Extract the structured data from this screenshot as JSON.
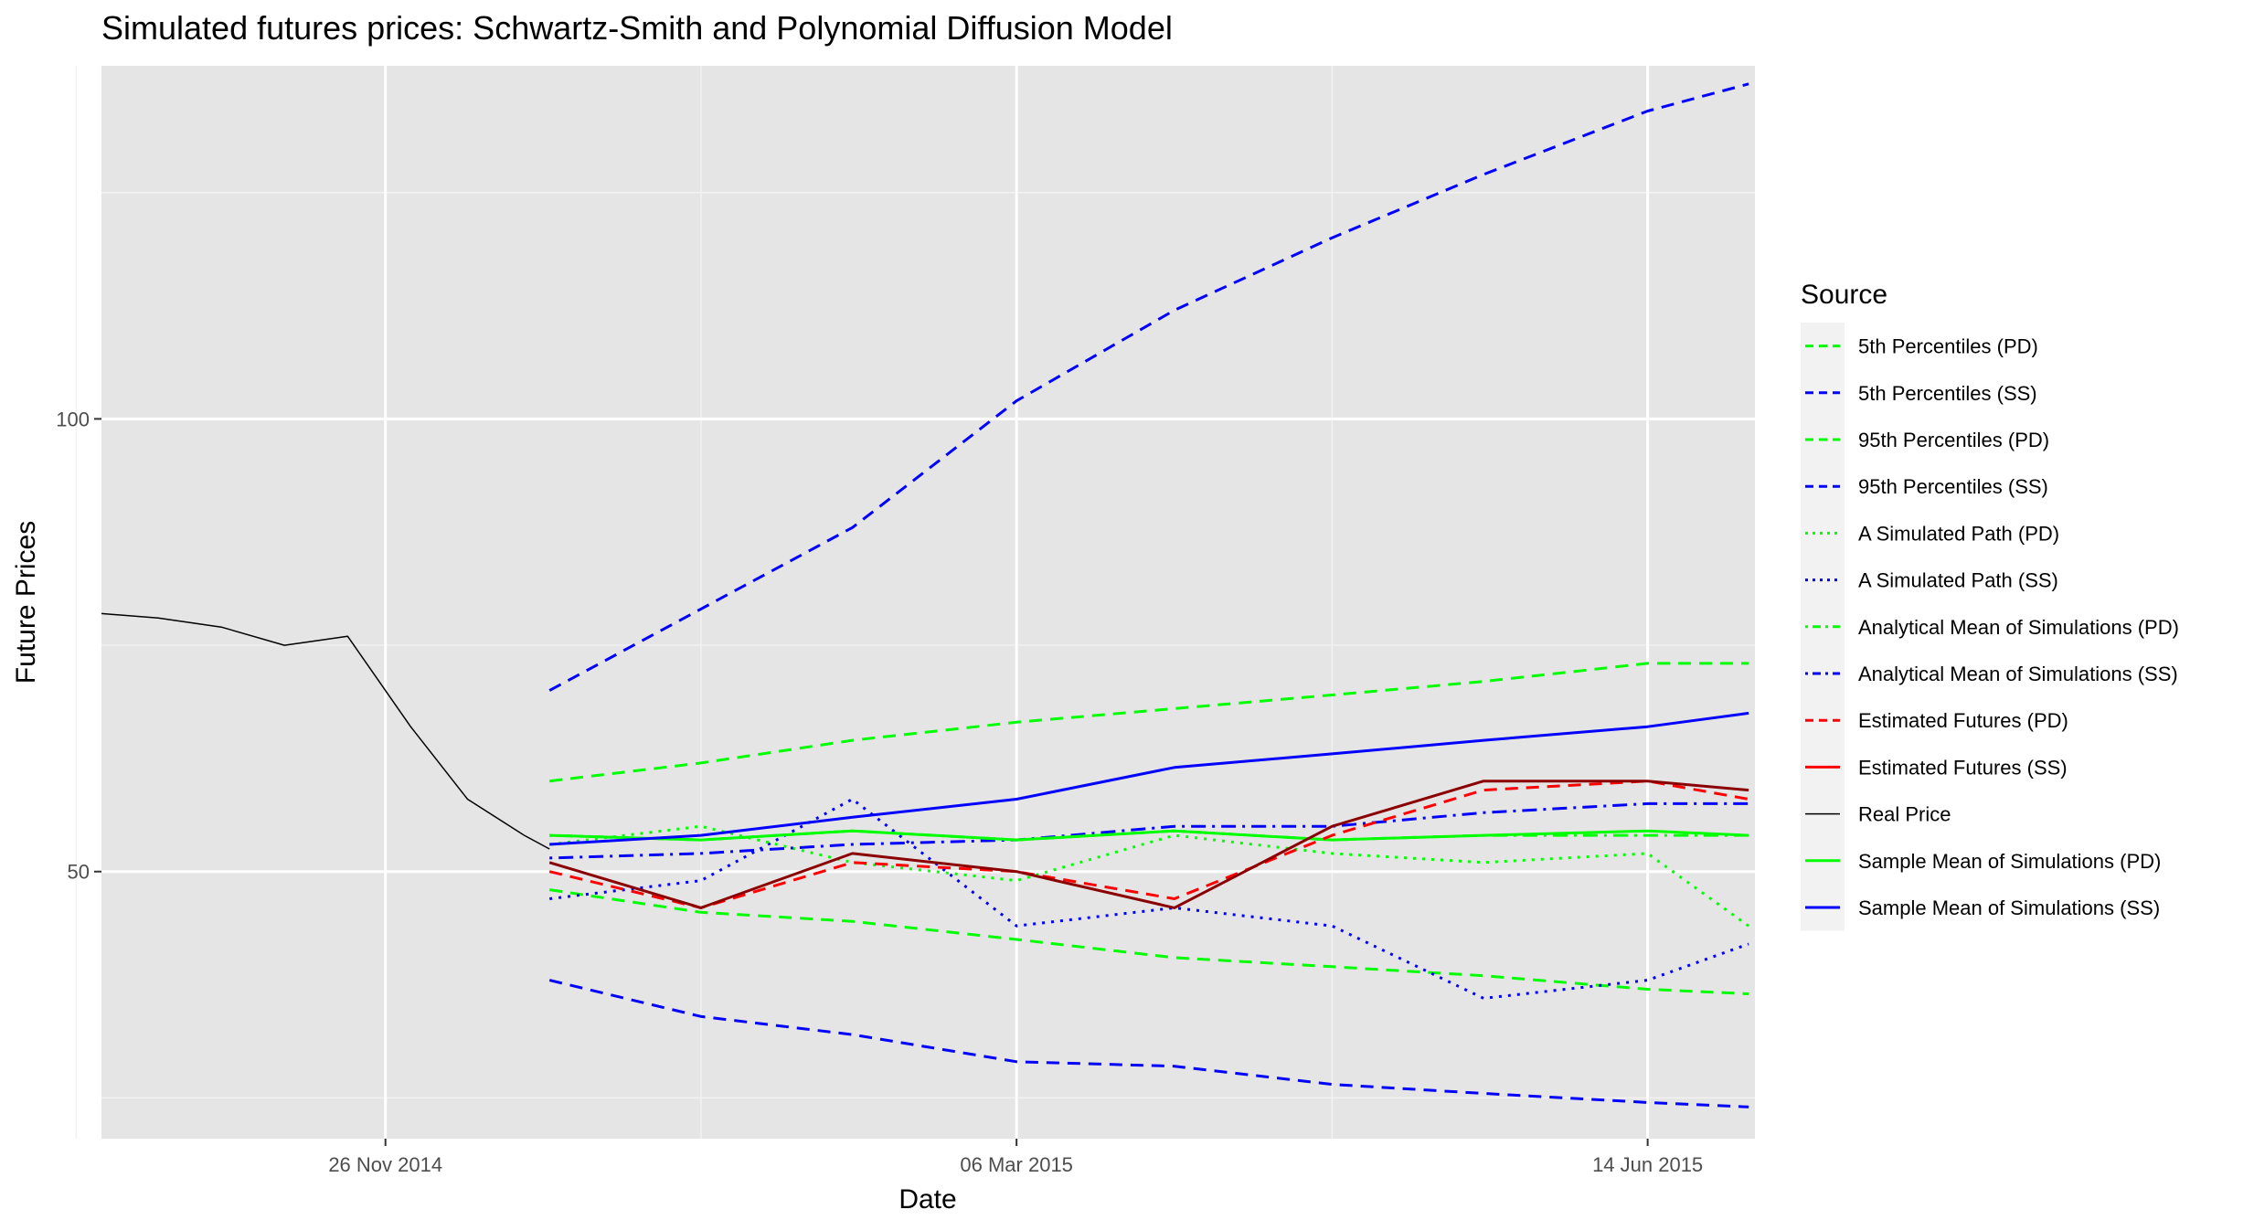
{
  "chart_data": {
    "type": "line",
    "title": "Simulated futures prices: Schwartz-Smith and Polynomial Diffusion Model",
    "xlabel": "Date",
    "ylabel": "Future Prices",
    "x_axis": {
      "type": "date",
      "range": [
        "2014-10-12",
        "2015-07-01"
      ],
      "ticks": [
        {
          "date": "2014-11-26",
          "label": "26 Nov 2014"
        },
        {
          "date": "2015-03-06",
          "label": "06 Mar 2015"
        },
        {
          "date": "2015-06-14",
          "label": "14 Jun 2015"
        }
      ],
      "minor_grid": [
        "2014-10-08",
        "2015-01-15",
        "2015-04-25"
      ]
    },
    "y_axis": {
      "range": [
        20.5,
        139
      ],
      "ticks": [
        {
          "value": 100,
          "label": "100"
        },
        {
          "value": 50,
          "label": "50"
        }
      ],
      "minor_grid": [
        25,
        75,
        125
      ]
    },
    "grid": true,
    "legend": {
      "title": "Source",
      "position": "right"
    },
    "series": [
      {
        "name": "5th Percentiles (PD)",
        "color": "#00ff00",
        "dash": "dashed",
        "x": [
          "2014-12-22",
          "2015-01-15",
          "2015-02-08",
          "2015-03-06",
          "2015-03-31",
          "2015-04-25",
          "2015-05-19",
          "2015-06-14",
          "2015-06-30"
        ],
        "y": [
          48,
          45.5,
          44.5,
          42.5,
          40.5,
          39.5,
          38.5,
          37,
          36.5
        ]
      },
      {
        "name": "5th Percentiles (SS)",
        "color": "#0000ff",
        "dash": "dashed",
        "x": [
          "2014-12-22",
          "2015-01-15",
          "2015-02-08",
          "2015-03-06",
          "2015-03-31",
          "2015-04-25",
          "2015-05-19",
          "2015-06-14",
          "2015-06-30"
        ],
        "y": [
          38,
          34,
          32,
          29,
          28.5,
          26.5,
          25.5,
          24.5,
          24
        ]
      },
      {
        "name": "95th Percentiles (PD)",
        "color": "#00ff00",
        "dash": "dashed",
        "x": [
          "2014-12-22",
          "2015-01-15",
          "2015-02-08",
          "2015-03-06",
          "2015-03-31",
          "2015-04-25",
          "2015-05-19",
          "2015-06-14",
          "2015-06-30"
        ],
        "y": [
          60,
          62,
          64.5,
          66.5,
          68,
          69.5,
          71,
          73,
          73
        ]
      },
      {
        "name": "95th Percentiles (SS)",
        "color": "#0000ff",
        "dash": "dashed",
        "x": [
          "2014-12-22",
          "2015-01-15",
          "2015-02-08",
          "2015-03-06",
          "2015-03-31",
          "2015-04-25",
          "2015-05-19",
          "2015-06-14",
          "2015-06-30"
        ],
        "y": [
          70,
          79,
          88,
          102,
          112,
          120,
          127,
          134,
          137
        ]
      },
      {
        "name": "A Simulated Path (PD)",
        "color": "#00ff00",
        "dash": "dotted",
        "x": [
          "2014-12-22",
          "2015-01-15",
          "2015-02-08",
          "2015-03-06",
          "2015-03-31",
          "2015-04-25",
          "2015-05-19",
          "2015-06-14",
          "2015-06-30"
        ],
        "y": [
          53,
          55,
          51,
          49,
          54,
          52,
          51,
          52,
          44
        ]
      },
      {
        "name": "A Simulated Path (SS)",
        "color": "#0000ff",
        "dash": "dotted",
        "x": [
          "2014-12-22",
          "2015-01-15",
          "2015-02-08",
          "2015-03-06",
          "2015-03-31",
          "2015-04-25",
          "2015-05-19",
          "2015-06-14",
          "2015-06-30"
        ],
        "y": [
          47,
          49,
          58,
          44,
          46,
          44,
          36,
          38,
          42
        ]
      },
      {
        "name": "Analytical Mean of Simulations (PD)",
        "color": "#00ff00",
        "dash": "dotdash",
        "x": [
          "2014-12-22",
          "2015-01-15",
          "2015-02-08",
          "2015-03-06",
          "2015-03-31",
          "2015-04-25",
          "2015-05-19",
          "2015-06-14",
          "2015-06-30"
        ],
        "y": [
          54,
          53.5,
          54.5,
          53.5,
          54.5,
          53.5,
          54,
          54,
          54
        ]
      },
      {
        "name": "Analytical Mean of Simulations (SS)",
        "color": "#0000ff",
        "dash": "dotdash",
        "x": [
          "2014-12-22",
          "2015-01-15",
          "2015-02-08",
          "2015-03-06",
          "2015-03-31",
          "2015-04-25",
          "2015-05-19",
          "2015-06-14",
          "2015-06-30"
        ],
        "y": [
          51.5,
          52,
          53,
          53.5,
          55,
          55,
          56.5,
          57.5,
          57.5
        ]
      },
      {
        "name": "Estimated Futures (PD)",
        "color": "#ff0000",
        "dash": "dashed",
        "x": [
          "2014-12-22",
          "2015-01-15",
          "2015-02-08",
          "2015-03-06",
          "2015-03-31",
          "2015-04-25",
          "2015-05-19",
          "2015-06-14",
          "2015-06-30"
        ],
        "y": [
          50,
          46,
          51,
          50,
          47,
          54,
          59,
          60,
          58
        ]
      },
      {
        "name": "Estimated Futures (SS)",
        "color": "#ff0000",
        "dash": "solid",
        "x": [
          "2014-12-22",
          "2015-01-15",
          "2015-02-08",
          "2015-03-06",
          "2015-03-31",
          "2015-04-25",
          "2015-05-19",
          "2015-06-14",
          "2015-06-30"
        ],
        "y": [
          51,
          46,
          52,
          50,
          46,
          55,
          60,
          60,
          59
        ]
      },
      {
        "name": "Real Price",
        "color": "#000000",
        "dash": "solid",
        "x": [
          "2014-10-12",
          "2014-10-21",
          "2014-10-31",
          "2014-11-10",
          "2014-11-20",
          "2014-11-30",
          "2014-12-09",
          "2014-12-18",
          "2014-12-22"
        ],
        "y": [
          78.5,
          78,
          77,
          75,
          76,
          66,
          58,
          54,
          52.5
        ]
      },
      {
        "name": "Sample Mean of Simulations (PD)",
        "color": "#00ff00",
        "dash": "solid",
        "x": [
          "2014-12-22",
          "2015-01-15",
          "2015-02-08",
          "2015-03-06",
          "2015-03-31",
          "2015-04-25",
          "2015-05-19",
          "2015-06-14",
          "2015-06-30"
        ],
        "y": [
          54,
          53.5,
          54.5,
          53.5,
          54.5,
          53.5,
          54,
          54.5,
          54
        ]
      },
      {
        "name": "Sample Mean of Simulations (SS)",
        "color": "#0000ff",
        "dash": "solid",
        "x": [
          "2014-12-22",
          "2015-01-15",
          "2015-02-08",
          "2015-03-06",
          "2015-03-31",
          "2015-04-25",
          "2015-05-19",
          "2015-06-14",
          "2015-06-30"
        ],
        "y": [
          53,
          54,
          56,
          58,
          61.5,
          63,
          64.5,
          66,
          67.5
        ]
      }
    ]
  }
}
